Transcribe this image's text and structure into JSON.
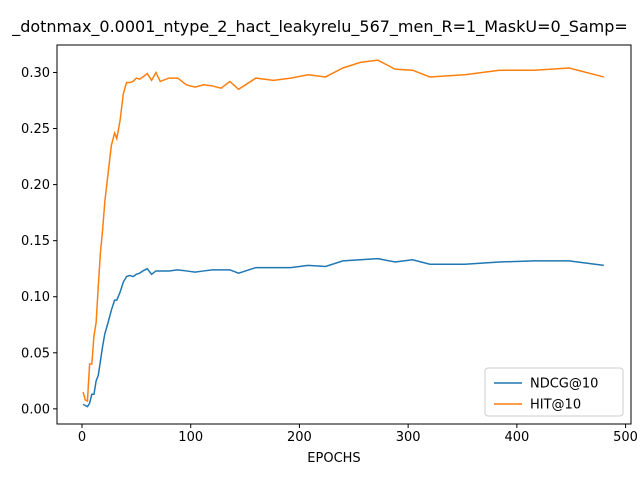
{
  "chart_data": {
    "type": "line",
    "title": "_dotnmax_0.0001_ntype_2_hact_leakyrelu_567_men_R=1_MaskU=0_Samp=",
    "xlabel": "EPOCHS",
    "ylabel": "",
    "xlim": [
      -23,
      505
    ],
    "ylim": [
      -0.0135,
      0.3245
    ],
    "xticks": [
      0,
      100,
      200,
      300,
      400,
      500
    ],
    "yticks": [
      0.0,
      0.05,
      0.1,
      0.15,
      0.2,
      0.25,
      0.3
    ],
    "ytick_labels": [
      "0.00",
      "0.05",
      "0.10",
      "0.15",
      "0.20",
      "0.25",
      "0.30"
    ],
    "grid": false,
    "legend_position": "lower-right",
    "series": [
      {
        "name": "NDCG@10",
        "color": "#1f77b4",
        "x": [
          1,
          3,
          5,
          7,
          9,
          11,
          13,
          15,
          17,
          19,
          21,
          24,
          27,
          30,
          32,
          35,
          38,
          41,
          44,
          47,
          50,
          53,
          56,
          60,
          64,
          68,
          72,
          80,
          88,
          96,
          104,
          112,
          120,
          128,
          136,
          144,
          160,
          176,
          192,
          208,
          224,
          240,
          256,
          272,
          288,
          304,
          320,
          352,
          384,
          416,
          448,
          480
        ],
        "y": [
          0.004,
          0.003,
          0.002,
          0.005,
          0.013,
          0.013,
          0.025,
          0.03,
          0.043,
          0.056,
          0.067,
          0.077,
          0.088,
          0.097,
          0.097,
          0.104,
          0.113,
          0.118,
          0.119,
          0.118,
          0.12,
          0.121,
          0.123,
          0.125,
          0.12,
          0.123,
          0.123,
          0.123,
          0.124,
          0.123,
          0.122,
          0.123,
          0.124,
          0.124,
          0.124,
          0.121,
          0.126,
          0.126,
          0.126,
          0.128,
          0.127,
          0.132,
          0.133,
          0.134,
          0.131,
          0.133,
          0.129,
          0.129,
          0.131,
          0.132,
          0.132,
          0.128
        ]
      },
      {
        "name": "HIT@10",
        "color": "#ff7f0e",
        "x": [
          1,
          3,
          5,
          7,
          9,
          11,
          13,
          15,
          17,
          19,
          21,
          24,
          27,
          30,
          32,
          35,
          38,
          41,
          44,
          47,
          50,
          53,
          56,
          60,
          64,
          68,
          72,
          80,
          88,
          96,
          104,
          112,
          120,
          128,
          136,
          144,
          160,
          176,
          192,
          208,
          224,
          240,
          256,
          272,
          288,
          304,
          320,
          352,
          384,
          416,
          448,
          480
        ],
        "y": [
          0.015,
          0.008,
          0.007,
          0.04,
          0.04,
          0.065,
          0.077,
          0.11,
          0.14,
          0.16,
          0.185,
          0.21,
          0.235,
          0.246,
          0.241,
          0.257,
          0.281,
          0.291,
          0.291,
          0.292,
          0.295,
          0.294,
          0.296,
          0.299,
          0.293,
          0.3,
          0.292,
          0.295,
          0.295,
          0.289,
          0.287,
          0.289,
          0.288,
          0.286,
          0.292,
          0.285,
          0.295,
          0.293,
          0.295,
          0.298,
          0.296,
          0.304,
          0.309,
          0.311,
          0.303,
          0.302,
          0.296,
          0.298,
          0.302,
          0.302,
          0.304,
          0.296
        ]
      }
    ]
  }
}
